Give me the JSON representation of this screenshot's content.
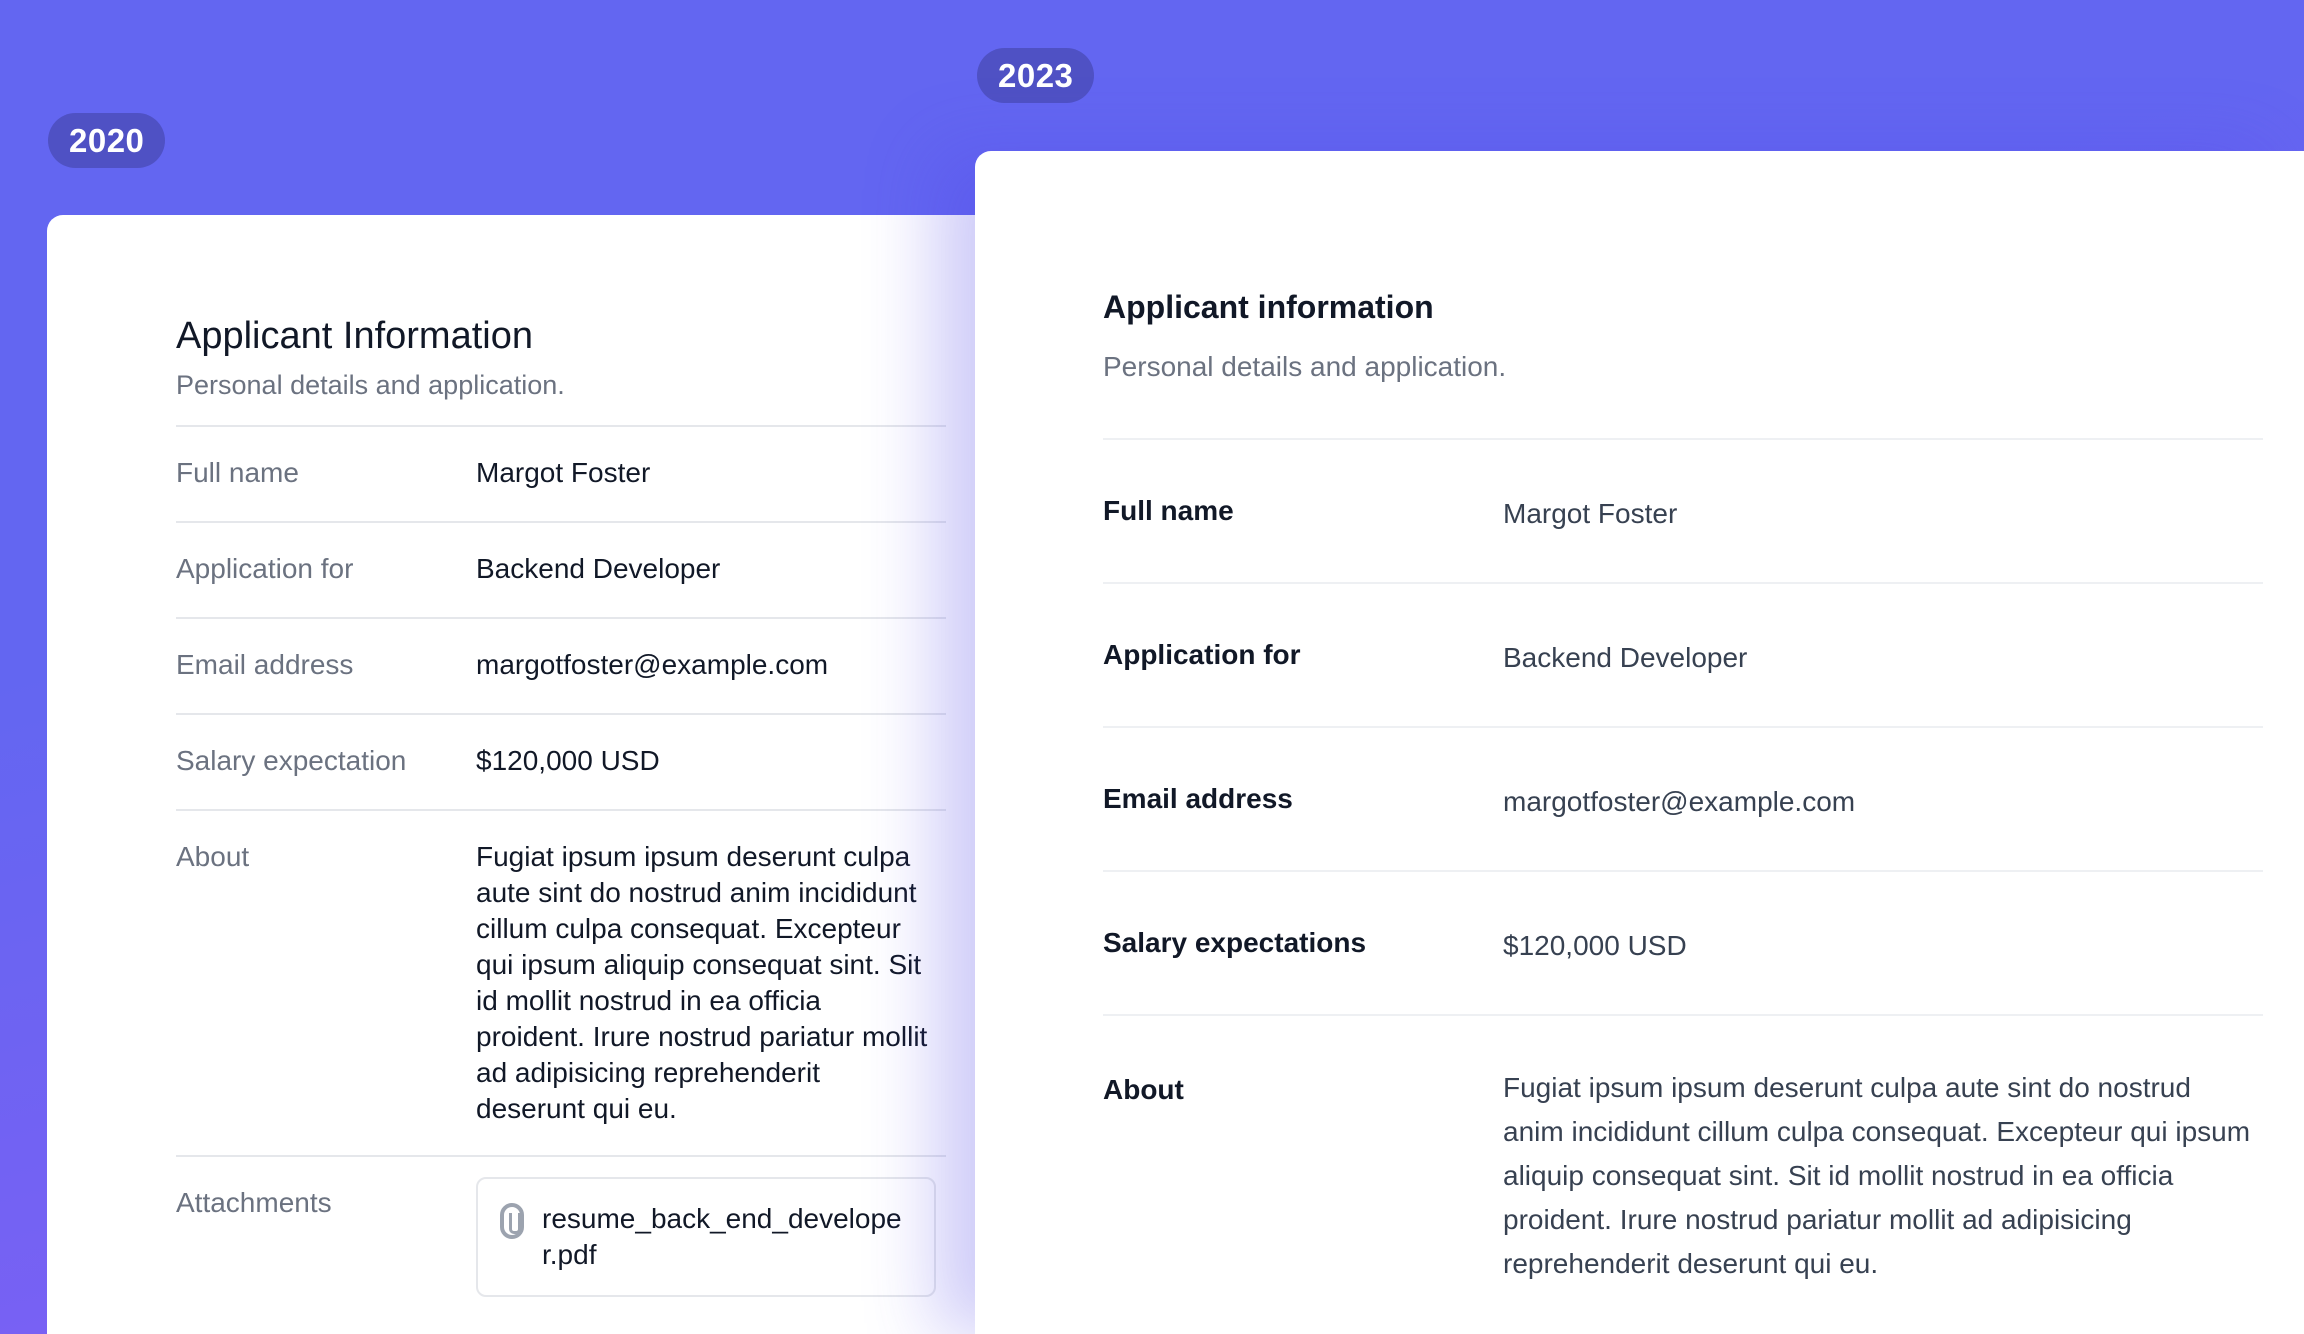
{
  "badges": {
    "old": "2020",
    "new": "2023"
  },
  "colors": {
    "background_top": "#6366f1",
    "background_bottom": "#8b5cf6",
    "badge": "#4f51c4"
  },
  "old_card": {
    "title": "Applicant Information",
    "subtitle": "Personal details and application.",
    "rows": [
      {
        "label": "Full name",
        "value": "Margot Foster"
      },
      {
        "label": "Application for",
        "value": "Backend Developer"
      },
      {
        "label": "Email address",
        "value": "margotfoster@example.com"
      },
      {
        "label": "Salary expectation",
        "value": "$120,000 USD"
      },
      {
        "label": "About",
        "value": "Fugiat ipsum ipsum deserunt culpa aute sint do nostrud anim incididunt cillum culpa consequat. Excepteur qui ipsum aliquip consequat sint. Sit id mollit nostrud in ea officia proident. Irure nostrud pariatur mollit ad adipisicing reprehenderit deserunt qui eu."
      }
    ],
    "attachments": {
      "label": "Attachments",
      "file": "resume_back_end_developer.pdf",
      "icon": "paperclip-icon"
    }
  },
  "new_card": {
    "title": "Applicant information",
    "subtitle": "Personal details and application.",
    "rows": [
      {
        "label": "Full name",
        "value": "Margot Foster"
      },
      {
        "label": "Application for",
        "value": "Backend Developer"
      },
      {
        "label": "Email address",
        "value": "margotfoster@example.com"
      },
      {
        "label": "Salary expectations",
        "value": "$120,000 USD"
      },
      {
        "label": "About",
        "value": "Fugiat ipsum ipsum deserunt culpa aute sint do nostrud anim incididunt cillum culpa consequat. Excepteur qui ipsum aliquip consequat sint. Sit id mollit nostrud in ea officia proident. Irure nostrud pariatur mollit ad adipisicing reprehenderit deserunt qui eu."
      }
    ]
  }
}
